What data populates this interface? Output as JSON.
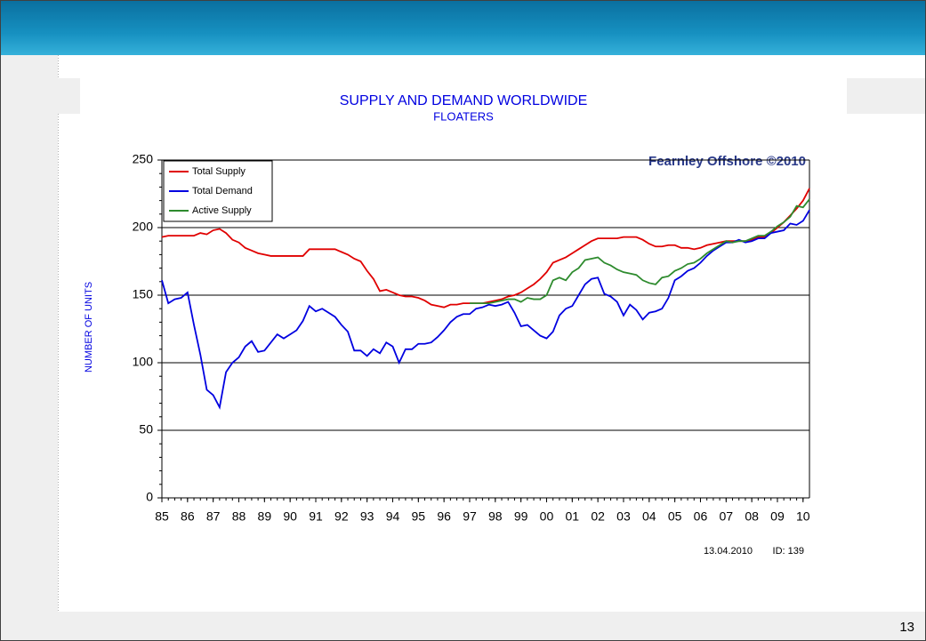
{
  "chart_data": {
    "type": "line",
    "title": "SUPPLY AND DEMAND WORLDWIDE",
    "subtitle": "FLOATERS",
    "y_label": "NUMBER OF UNITS",
    "watermark": "Fearnley Offshore ©2010",
    "date_note": "13.04.2010",
    "id_note": "ID: 139",
    "page_number": "13",
    "legend": "top-left",
    "grid": true,
    "xlim": [
      1985,
      2010.25
    ],
    "xticks": [
      {
        "value": 1985,
        "label": "85"
      },
      {
        "value": 1986,
        "label": "86"
      },
      {
        "value": 1987,
        "label": "87"
      },
      {
        "value": 1988,
        "label": "88"
      },
      {
        "value": 1989,
        "label": "89"
      },
      {
        "value": 1990,
        "label": "90"
      },
      {
        "value": 1991,
        "label": "91"
      },
      {
        "value": 1992,
        "label": "92"
      },
      {
        "value": 1993,
        "label": "93"
      },
      {
        "value": 1994,
        "label": "94"
      },
      {
        "value": 1995,
        "label": "95"
      },
      {
        "value": 1996,
        "label": "96"
      },
      {
        "value": 1997,
        "label": "97"
      },
      {
        "value": 1998,
        "label": "98"
      },
      {
        "value": 1999,
        "label": "99"
      },
      {
        "value": 2000,
        "label": "00"
      },
      {
        "value": 2001,
        "label": "01"
      },
      {
        "value": 2002,
        "label": "02"
      },
      {
        "value": 2003,
        "label": "03"
      },
      {
        "value": 2004,
        "label": "04"
      },
      {
        "value": 2005,
        "label": "05"
      },
      {
        "value": 2006,
        "label": "06"
      },
      {
        "value": 2007,
        "label": "07"
      },
      {
        "value": 2008,
        "label": "08"
      },
      {
        "value": 2009,
        "label": "09"
      },
      {
        "value": 2010,
        "label": "10"
      }
    ],
    "ylim": [
      0,
      250
    ],
    "yticks": [
      0,
      50,
      100,
      150,
      200,
      250
    ],
    "x": [
      1985,
      1985.25,
      1985.5,
      1985.75,
      1986,
      1986.25,
      1986.5,
      1986.75,
      1987,
      1987.25,
      1987.5,
      1987.75,
      1988,
      1988.25,
      1988.5,
      1988.75,
      1989,
      1989.25,
      1989.5,
      1989.75,
      1990,
      1990.25,
      1990.5,
      1990.75,
      1991,
      1991.25,
      1991.5,
      1991.75,
      1992,
      1992.25,
      1992.5,
      1992.75,
      1993,
      1993.25,
      1993.5,
      1993.75,
      1994,
      1994.25,
      1994.5,
      1994.75,
      1995,
      1995.25,
      1995.5,
      1995.75,
      1996,
      1996.25,
      1996.5,
      1996.75,
      1997,
      1997.25,
      1997.5,
      1997.75,
      1998,
      1998.25,
      1998.5,
      1998.75,
      1999,
      1999.25,
      1999.5,
      1999.75,
      2000,
      2000.25,
      2000.5,
      2000.75,
      2001,
      2001.25,
      2001.5,
      2001.75,
      2002,
      2002.25,
      2002.5,
      2002.75,
      2003,
      2003.25,
      2003.5,
      2003.75,
      2004,
      2004.25,
      2004.5,
      2004.75,
      2005,
      2005.25,
      2005.5,
      2005.75,
      2006,
      2006.25,
      2006.5,
      2006.75,
      2007,
      2007.25,
      2007.5,
      2007.75,
      2008,
      2008.25,
      2008.5,
      2008.75,
      2009,
      2009.25,
      2009.5,
      2009.75,
      2010,
      2010.25
    ],
    "series": [
      {
        "name": "Total Supply",
        "color": "#e00000",
        "values": [
          193,
          194,
          194,
          194,
          194,
          194,
          196,
          195,
          198,
          199,
          196,
          191,
          189,
          185,
          183,
          181,
          180,
          179,
          179,
          179,
          179,
          179,
          179,
          184,
          184,
          184,
          184,
          184,
          182,
          180,
          177,
          175,
          168,
          162,
          153,
          154,
          152,
          150,
          149,
          149,
          148,
          146,
          143,
          142,
          141,
          143,
          143,
          144,
          144,
          144,
          144,
          145,
          146,
          147,
          149,
          150,
          152,
          155,
          158,
          162,
          167,
          174,
          176,
          178,
          181,
          184,
          187,
          190,
          192,
          192,
          192,
          192,
          193,
          193,
          193,
          191,
          188,
          186,
          186,
          187,
          187,
          185,
          185,
          184,
          185,
          187,
          188,
          189,
          190,
          190,
          190,
          190,
          191,
          193,
          193,
          196,
          200,
          204,
          209,
          214,
          220,
          229
        ]
      },
      {
        "name": "Total Demand",
        "color": "#0000e0",
        "values": [
          161,
          144,
          147,
          148,
          152,
          128,
          106,
          80,
          76,
          67,
          93,
          100,
          104,
          112,
          116,
          108,
          109,
          115,
          121,
          118,
          121,
          124,
          131,
          142,
          138,
          140,
          137,
          134,
          128,
          123,
          109,
          109,
          105,
          110,
          107,
          115,
          112,
          100,
          110,
          110,
          114,
          114,
          115,
          119,
          124,
          130,
          134,
          136,
          136,
          140,
          141,
          143,
          142,
          143,
          145,
          137,
          127,
          128,
          124,
          120,
          118,
          123,
          135,
          140,
          142,
          150,
          158,
          162,
          163,
          151,
          149,
          145,
          135,
          143,
          139,
          132,
          137,
          138,
          140,
          148,
          161,
          164,
          168,
          170,
          174,
          179,
          183,
          186,
          189,
          189,
          191,
          189,
          190,
          192,
          192,
          196,
          197,
          198,
          203,
          202,
          205,
          213
        ]
      },
      {
        "name": "Active Supply",
        "color": "#2e8b2e",
        "values": [
          null,
          null,
          null,
          null,
          null,
          null,
          null,
          null,
          null,
          null,
          null,
          null,
          null,
          null,
          null,
          null,
          null,
          null,
          null,
          null,
          null,
          null,
          null,
          null,
          null,
          null,
          null,
          null,
          null,
          null,
          null,
          null,
          null,
          null,
          null,
          null,
          null,
          null,
          null,
          null,
          null,
          null,
          null,
          null,
          null,
          null,
          null,
          null,
          144,
          144,
          144,
          144,
          145,
          146,
          147,
          147,
          145,
          148,
          147,
          147,
          150,
          161,
          163,
          161,
          167,
          170,
          176,
          177,
          178,
          174,
          172,
          169,
          167,
          166,
          165,
          161,
          159,
          158,
          163,
          164,
          168,
          170,
          173,
          174,
          177,
          181,
          184,
          187,
          190,
          189,
          190,
          190,
          192,
          194,
          194,
          197,
          201,
          204,
          208,
          216,
          215,
          221
        ]
      }
    ]
  }
}
